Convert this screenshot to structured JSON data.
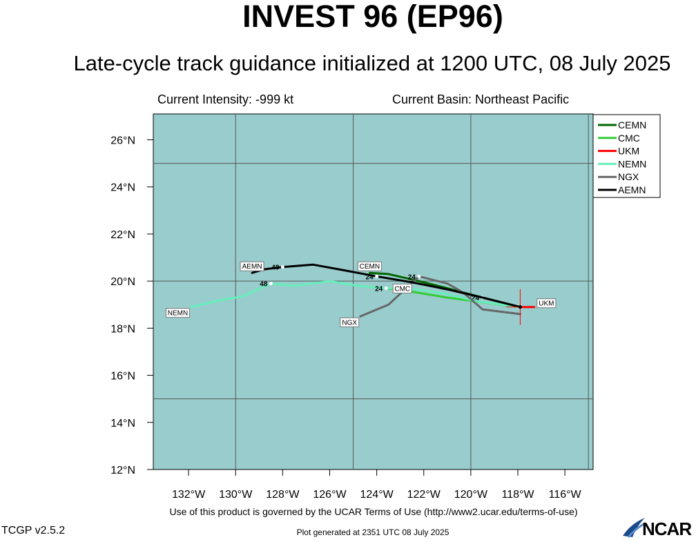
{
  "header": {
    "title": "INVEST 96 (EP96)",
    "subtitle": "Late-cycle track guidance initialized at 1200 UTC, 08 July 2025"
  },
  "info": {
    "intensity": "Current Intensity: -999 kt",
    "basin": "Current Basin: Northeast Pacific"
  },
  "footer": {
    "terms": "Use of this product is governed by the UCAR Terms of Use (http://www2.ucar.edu/terms-of-use)",
    "version": "TCGP v2.5.2",
    "generated": "Plot generated at 2351 UTC   08 July 2025",
    "logo_text": "NCAR"
  },
  "map": {
    "ocean_color": "#99cccc",
    "lon_ticks": [
      "132°W",
      "130°W",
      "128°W",
      "126°W",
      "124°W",
      "122°W",
      "120°W",
      "118°W",
      "116°W"
    ],
    "lat_ticks": [
      "12°N",
      "14°N",
      "16°N",
      "18°N",
      "20°N",
      "22°N",
      "24°N",
      "26°N"
    ]
  },
  "chart_data": {
    "type": "line",
    "xlabel": "",
    "ylabel": "",
    "legend_position": "right",
    "current_position": {
      "lon": -117.9,
      "lat": 18.9
    },
    "series": [
      {
        "name": "CEMN",
        "color": "#006600",
        "tau_labels": [
          {
            "text": "24",
            "at": 1
          }
        ],
        "points": [
          [
            -117.9,
            18.9
          ],
          [
            -119.5,
            19.3
          ],
          [
            -121.0,
            19.7
          ],
          [
            -122.2,
            20.0
          ],
          [
            -123.5,
            20.3
          ],
          [
            -124.3,
            20.35
          ]
        ]
      },
      {
        "name": "CMC",
        "color": "#33cc33",
        "tau_labels": [],
        "points": [
          [
            -117.9,
            18.9
          ],
          [
            -119.5,
            19.1
          ],
          [
            -121.0,
            19.3
          ],
          [
            -122.5,
            19.55
          ],
          [
            -123.6,
            19.7
          ]
        ]
      },
      {
        "name": "UKM",
        "color": "#ff0000",
        "tau_labels": [],
        "points": [
          [
            -117.9,
            18.9
          ],
          [
            -117.3,
            18.9
          ]
        ]
      },
      {
        "name": "NEMN",
        "color": "#66eebb",
        "tau_labels": [
          {
            "text": "24",
            "at": 5
          },
          {
            "text": "48",
            "at": 9
          }
        ],
        "points": [
          [
            -117.9,
            18.9
          ],
          [
            -119.8,
            19.15
          ],
          [
            -121.0,
            19.45
          ],
          [
            -122.3,
            19.65
          ],
          [
            -123.0,
            19.7
          ],
          [
            -123.6,
            19.7
          ],
          [
            -124.8,
            19.8
          ],
          [
            -126.0,
            20.0
          ],
          [
            -127.5,
            19.8
          ],
          [
            -128.5,
            19.9
          ],
          [
            -129.7,
            19.35
          ],
          [
            -130.6,
            19.2
          ],
          [
            -131.9,
            18.9
          ]
        ]
      },
      {
        "name": "NGX",
        "color": "#666666",
        "tau_labels": [
          {
            "text": "24",
            "at": 4
          }
        ],
        "points": [
          [
            -117.9,
            18.6
          ],
          [
            -119.5,
            18.8
          ],
          [
            -120.3,
            19.5
          ],
          [
            -121.0,
            19.9
          ],
          [
            -122.2,
            20.2
          ],
          [
            -123.5,
            19.0
          ],
          [
            -124.7,
            18.5
          ]
        ]
      },
      {
        "name": "AEMN",
        "color": "#000000",
        "tau_labels": [
          {
            "text": "24",
            "at": 4
          },
          {
            "text": "48",
            "at": 7
          }
        ],
        "points": [
          [
            -117.9,
            18.9
          ],
          [
            -119.5,
            19.3
          ],
          [
            -121.0,
            19.65
          ],
          [
            -122.5,
            19.95
          ],
          [
            -124.0,
            20.2
          ],
          [
            -125.6,
            20.5
          ],
          [
            -126.7,
            20.7
          ],
          [
            -128.0,
            20.6
          ],
          [
            -128.8,
            20.5
          ],
          [
            -129.3,
            20.35
          ]
        ]
      }
    ]
  }
}
